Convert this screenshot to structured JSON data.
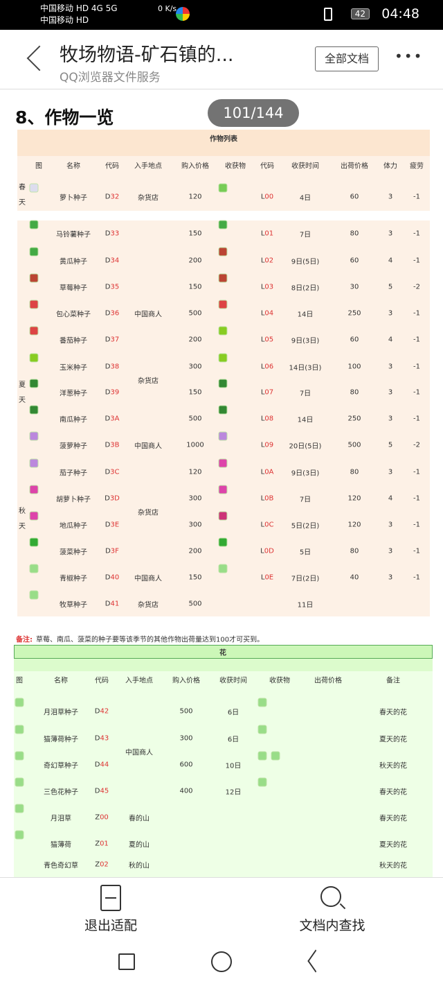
{
  "status": {
    "carrier1": "中国移动 HD 4G 5G",
    "carrier2": "中国移动 HD",
    "speed": "0 K/s",
    "battery": "42",
    "time": "04:48"
  },
  "header": {
    "title": "牧场物语-矿石镇的...",
    "subtitle": "QQ浏览器文件服务",
    "all_docs": "全部文档",
    "more": "•••"
  },
  "doc": {
    "heading": "8、作物一览",
    "page_badge": "101/144"
  },
  "crops": {
    "title": "作物列表",
    "headers": [
      "图",
      "名称",
      "代码",
      "入手地点",
      "购入价格",
      "收获物",
      "代码",
      "收获时间",
      "出荷价格",
      "体力",
      "疲劳"
    ],
    "seasons": [
      "春天",
      "夏天",
      "秋天"
    ],
    "rows": [
      {
        "seed_color": "#dde",
        "name": "萝卜种子",
        "code": [
          "D",
          "32"
        ],
        "buy": "120",
        "crop_color": "#7c5",
        "code2": [
          "L",
          "00"
        ],
        "time": "4日",
        "sell": "60",
        "stamina": "3",
        "fatigue": "-1"
      },
      {
        "seed_color": "#4a4",
        "name": "马铃薯种子",
        "code": [
          "D",
          "33"
        ],
        "buy": "150",
        "crop_color": "#4a4",
        "code2": [
          "L",
          "01"
        ],
        "time": "7日",
        "sell": "80",
        "stamina": "3",
        "fatigue": "-1"
      },
      {
        "seed_color": "#4a4",
        "name": "黄瓜种子",
        "code": [
          "D",
          "34"
        ],
        "buy": "200",
        "crop_color": "#b43",
        "code2": [
          "L",
          "02"
        ],
        "time": "9日(5日)",
        "sell": "60",
        "stamina": "4",
        "fatigue": "-1"
      },
      {
        "seed_color": "#b43",
        "name": "草莓种子",
        "code": [
          "D",
          "35"
        ],
        "buy": "150",
        "crop_color": "#b43",
        "code2": [
          "L",
          "03"
        ],
        "time": "8日(2日)",
        "sell": "30",
        "stamina": "5",
        "fatigue": "-2"
      },
      {
        "seed_color": "#d44",
        "name": "包心菜种子",
        "code": [
          "D",
          "36"
        ],
        "buy": "500",
        "crop_color": "#d44",
        "code2": [
          "L",
          "04"
        ],
        "time": "14日",
        "sell": "250",
        "stamina": "3",
        "fatigue": "-1"
      },
      {
        "seed_color": "#d44",
        "name": "番茄种子",
        "code": [
          "D",
          "37"
        ],
        "buy": "200",
        "crop_color": "#8c2",
        "code2": [
          "L",
          "05"
        ],
        "time": "9日(3日)",
        "sell": "60",
        "stamina": "4",
        "fatigue": "-1"
      },
      {
        "seed_color": "#8c2",
        "name": "玉米种子",
        "code": [
          "D",
          "38"
        ],
        "buy": "300",
        "crop_color": "#8c2",
        "code2": [
          "L",
          "06"
        ],
        "time": "14日(3日)",
        "sell": "100",
        "stamina": "3",
        "fatigue": "-1"
      },
      {
        "seed_color": "#383",
        "name": "洋葱种子",
        "code": [
          "D",
          "39"
        ],
        "buy": "150",
        "crop_color": "#383",
        "code2": [
          "L",
          "07"
        ],
        "time": "7日",
        "sell": "80",
        "stamina": "3",
        "fatigue": "-1"
      },
      {
        "seed_color": "#383",
        "name": "南瓜种子",
        "code": [
          "D",
          "3A"
        ],
        "buy": "500",
        "crop_color": "#383",
        "code2": [
          "L",
          "08"
        ],
        "time": "14日",
        "sell": "250",
        "stamina": "3",
        "fatigue": "-1"
      },
      {
        "seed_color": "#b8d",
        "name": "菠萝种子",
        "code": [
          "D",
          "3B"
        ],
        "buy": "1000",
        "crop_color": "#b8d",
        "code2": [
          "L",
          "09"
        ],
        "time": "20日(5日)",
        "sell": "500",
        "stamina": "5",
        "fatigue": "-2"
      },
      {
        "seed_color": "#b8d",
        "name": "茄子种子",
        "code": [
          "D",
          "3C"
        ],
        "buy": "120",
        "crop_color": "#d4a",
        "code2": [
          "L",
          "0A"
        ],
        "time": "9日(3日)",
        "sell": "80",
        "stamina": "3",
        "fatigue": "-1"
      },
      {
        "seed_color": "#d4a",
        "name": "胡萝卜种子",
        "code": [
          "D",
          "3D"
        ],
        "buy": "300",
        "crop_color": "#d4a",
        "code2": [
          "L",
          "0B"
        ],
        "time": "7日",
        "sell": "120",
        "stamina": "4",
        "fatigue": "-1"
      },
      {
        "seed_color": "#d4a",
        "name": "地瓜种子",
        "code": [
          "D",
          "3E"
        ],
        "buy": "300",
        "crop_color": "#c37",
        "code2": [
          "L",
          "0C"
        ],
        "time": "5日(2日)",
        "sell": "120",
        "stamina": "3",
        "fatigue": "-1"
      },
      {
        "seed_color": "#3a3",
        "name": "菠菜种子",
        "code": [
          "D",
          "3F"
        ],
        "buy": "200",
        "crop_color": "#3a3",
        "code2": [
          "L",
          "0D"
        ],
        "time": "5日",
        "sell": "80",
        "stamina": "3",
        "fatigue": "-1"
      },
      {
        "seed_color": "#9d8",
        "name": "青椒种子",
        "code": [
          "D",
          "40"
        ],
        "buy": "150",
        "crop_color": "#9d8",
        "code2": [
          "L",
          "0E"
        ],
        "time": "7日(2日)",
        "sell": "40",
        "stamina": "3",
        "fatigue": "-1"
      },
      {
        "seed_color": "#9d8",
        "name": "牧草种子",
        "code": [
          "D",
          "41"
        ],
        "buy": "500",
        "crop_color": "",
        "code2": [
          "",
          ""
        ],
        "time": "11日",
        "sell": "",
        "stamina": "",
        "fatigue": ""
      }
    ],
    "shops": [
      "杂货店",
      "中国商人",
      "杂货店",
      "中国商人",
      "杂货店",
      "中国商人",
      "杂货店"
    ]
  },
  "note": {
    "label": "备注:",
    "text": "草莓、南瓜、菠菜的种子要等该季节的其他作物出荷量达到100才可买到。"
  },
  "flowers": {
    "title": "花",
    "headers": [
      "图",
      "名称",
      "代码",
      "入手地点",
      "购入价格",
      "收获时间",
      "收获物",
      "出荷价格",
      "备注"
    ],
    "rows": [
      {
        "name": "月泪草种子",
        "code": [
          "D",
          "42"
        ],
        "buy": "500",
        "time": "6日",
        "remark": "春天的花",
        "icons": 1
      },
      {
        "name": "猫薄荷种子",
        "code": [
          "D",
          "43"
        ],
        "buy": "300",
        "time": "6日",
        "remark": "夏天的花",
        "icons": 1
      },
      {
        "name": "奇幻草种子",
        "code": [
          "D",
          "44"
        ],
        "buy": "600",
        "time": "10日",
        "remark": "秋天的花",
        "icons": 2
      },
      {
        "name": "三色花种子",
        "code": [
          "D",
          "45"
        ],
        "buy": "400",
        "time": "12日",
        "remark": "春天的花",
        "icons": 1
      },
      {
        "name": "月泪草",
        "code": [
          "Z",
          "00"
        ],
        "place": "春的山",
        "remark": "春天的花",
        "icons": 0
      },
      {
        "name": "猫薄荷",
        "code": [
          "Z",
          "01"
        ],
        "place": "夏的山",
        "remark": "夏天的花",
        "icons": 0
      },
      {
        "name": "青色奇幻草",
        "code": [
          "Z",
          "02"
        ],
        "place": "秋的山",
        "remark": "秋天的花",
        "icons": 0
      }
    ],
    "shop": "中国商人"
  },
  "bottom": {
    "exit_fit": "退出适配",
    "find_in_doc": "文档内查找"
  },
  "colors": {
    "crop_bg": "#fdf1e6",
    "flower_bg": "#eeffe6",
    "flower_title_bg": "#ccf7b8",
    "code_red": "#d33"
  }
}
